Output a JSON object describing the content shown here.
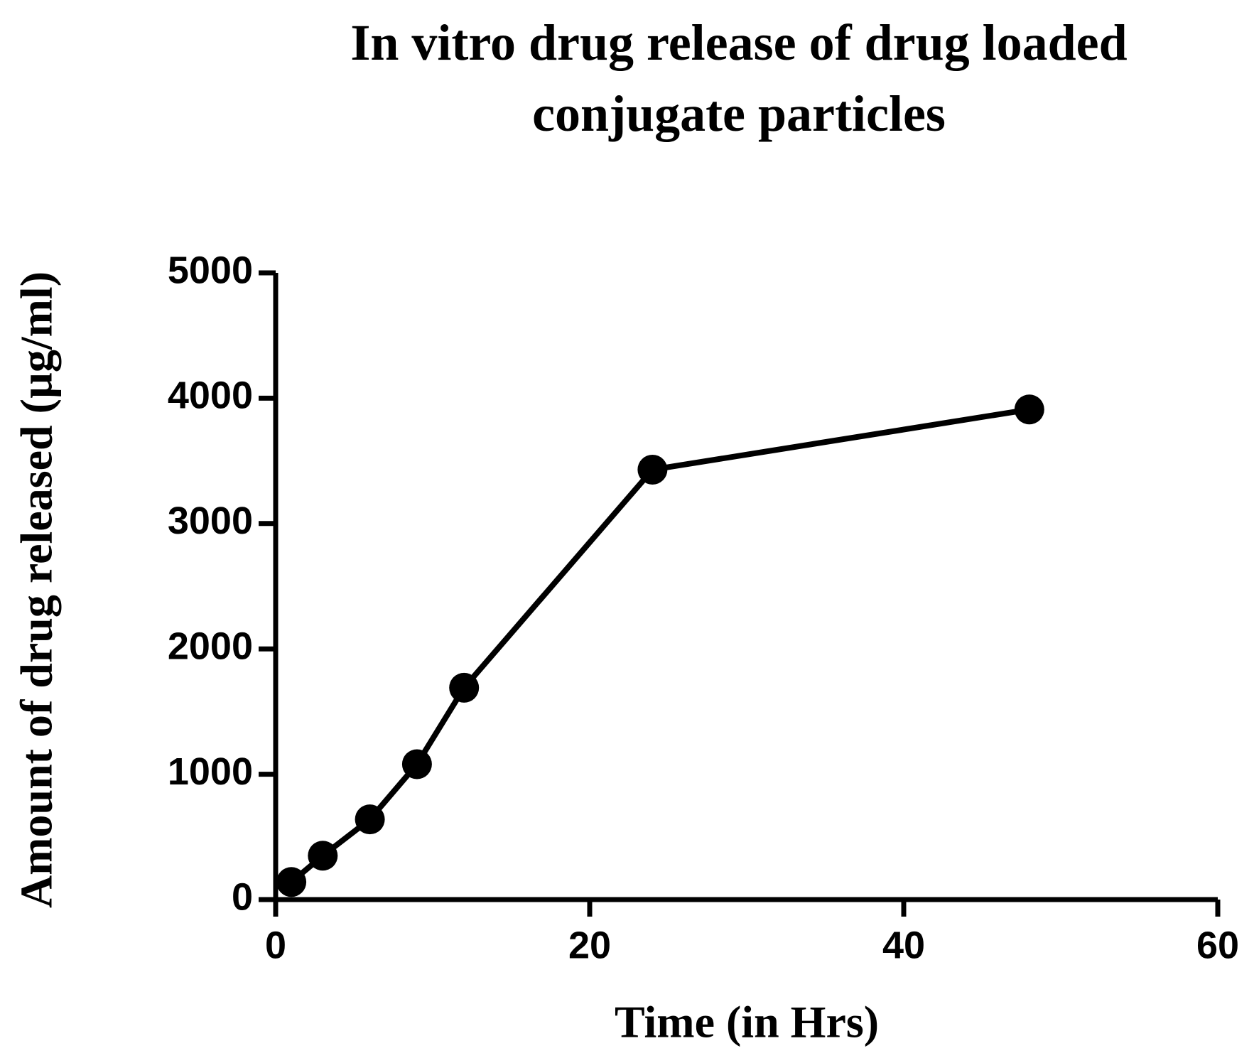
{
  "chart_data": {
    "type": "line",
    "title": "In vitro drug release of drug loaded conjugate particles",
    "x_label": "Time (in Hrs)",
    "y_label": "Amount of drug released (µg/ml)",
    "x": [
      1,
      3,
      6,
      9,
      12,
      24,
      48
    ],
    "series": [
      {
        "name": null,
        "color": "#000000",
        "values": [
          140,
          350,
          640,
          1080,
          1690,
          3430,
          3910
        ]
      }
    ],
    "xlim": [
      0,
      60
    ],
    "xticks": [
      0,
      20,
      40,
      60
    ],
    "ylim": [
      0,
      5000
    ],
    "yticks": [
      0,
      1000,
      2000,
      3000,
      4000,
      5000
    ],
    "grid": false
  }
}
